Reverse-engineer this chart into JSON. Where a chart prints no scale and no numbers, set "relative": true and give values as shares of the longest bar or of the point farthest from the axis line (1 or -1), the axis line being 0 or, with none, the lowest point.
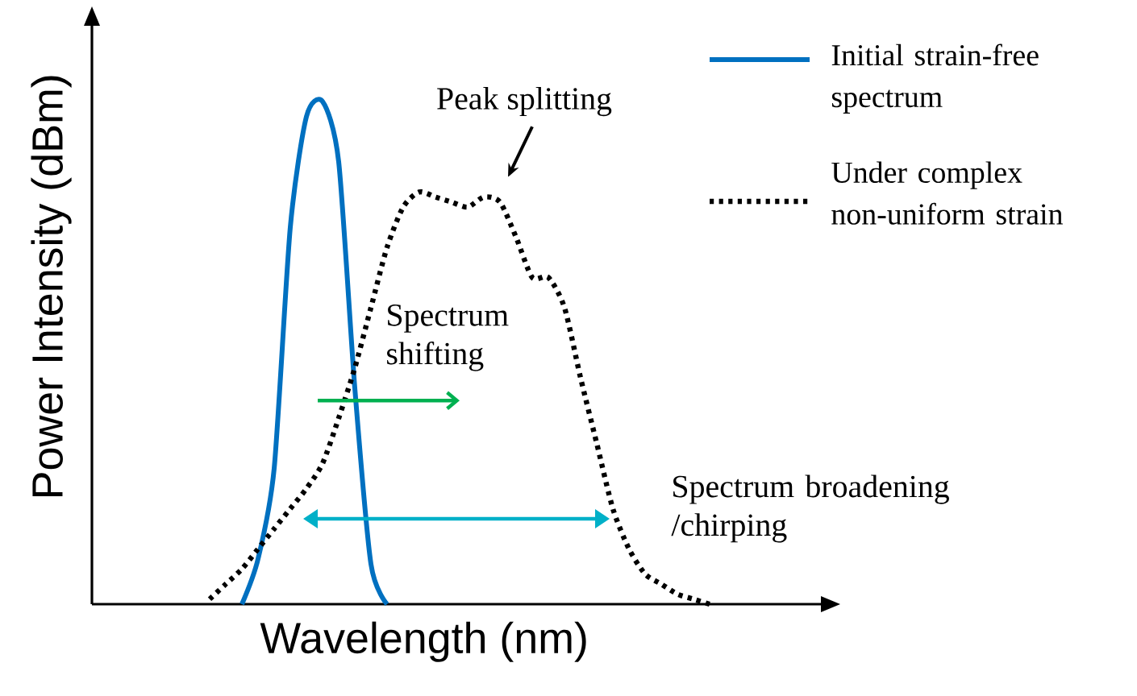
{
  "chart_data": {
    "type": "line",
    "relative": true,
    "xlabel": "Wavelength (nm)",
    "ylabel": "Power Intensity (dBm)",
    "tick_labels": false,
    "legend": "top right",
    "categories": [
      null,
      null,
      null,
      null,
      null,
      null,
      null,
      null,
      null,
      null,
      null,
      null,
      null,
      null,
      null,
      null,
      null,
      null,
      null,
      null,
      null,
      null,
      null,
      null,
      null,
      null,
      null,
      null,
      null,
      null,
      null,
      null
    ],
    "series": [
      {
        "name": "Initial strain-free spectrum",
        "color": "#0070c0",
        "line_style": "solid",
        "values": [
          null,
          null,
          0,
          0.09,
          0.27,
          0.75,
          0.97,
          1.0,
          0.88,
          0.43,
          0.08,
          0,
          null,
          null,
          null,
          null,
          null,
          null,
          null,
          null,
          null,
          null,
          null,
          null,
          null,
          null,
          null,
          null,
          null,
          null,
          null,
          null
        ]
      },
      {
        "name": "Under complex non-uniform strain",
        "color": "#000000",
        "line_style": "dotted",
        "values": [
          0.01,
          0.04,
          0.07,
          0.11,
          0.15,
          0.19,
          0.23,
          0.28,
          0.37,
          0.47,
          0.59,
          0.71,
          0.79,
          0.82,
          0.81,
          0.8,
          0.79,
          0.81,
          0.8,
          0.73,
          0.65,
          0.65,
          0.59,
          0.45,
          0.32,
          0.19,
          0.11,
          0.06,
          0.04,
          0.02,
          0.01,
          0
        ]
      }
    ],
    "annotations": [
      "Peak splitting",
      "Spectrum shifting",
      "Spectrum broadening /chirping"
    ]
  }
}
